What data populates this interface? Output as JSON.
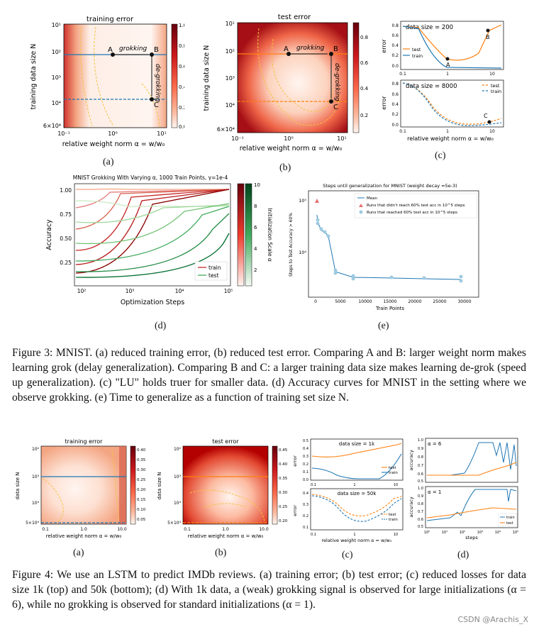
{
  "figure3": {
    "panel_a": {
      "title": "training error",
      "xlabel": "relative weight norm α = w/w₀",
      "ylabel": "training data size N",
      "xticks": [
        "10⁻¹",
        "10⁰",
        "10¹"
      ],
      "yticks": [
        "10¹",
        "10²",
        "10³",
        "10⁴",
        "6×10⁴"
      ],
      "colorbar_ticks": [
        "1.0",
        "0.8",
        "0.6",
        "0.4",
        "0.2",
        "0.0"
      ],
      "points": [
        "A",
        "B",
        "C"
      ],
      "arrow_labels": [
        "grokking",
        "de-grokking"
      ],
      "label": "(a)"
    },
    "panel_b": {
      "title": "test error",
      "xlabel": "relative weight norm α = w/w₀",
      "ylabel": "training data size N",
      "xticks": [
        "10⁻¹",
        "10⁰",
        "10¹"
      ],
      "yticks": [
        "10¹",
        "10²",
        "10³",
        "10⁴",
        "6×10⁴"
      ],
      "colorbar_ticks": [
        "0.8",
        "0.6",
        "0.4",
        "0.2"
      ],
      "points": [
        "A",
        "B",
        "C"
      ],
      "arrow_labels": [
        "grokking",
        "de-grokking"
      ],
      "label": "(b)"
    },
    "panel_c": {
      "top_title": "data size = 200",
      "bottom_title": "data size = 8000",
      "ylabel": "error",
      "xlabel": "relative weight norm α = w/w₀",
      "xticks": [
        "0.1",
        "1",
        "10"
      ],
      "top_yticks": [
        "0.8",
        "0.6",
        "0.4",
        "0.2",
        "0.0"
      ],
      "bottom_yticks": [
        "0.8",
        "0.6",
        "0.4",
        "0.2",
        "0.0"
      ],
      "legend": [
        "test",
        "train"
      ],
      "top_points": [
        "A",
        "B"
      ],
      "bottom_points": [
        "C"
      ],
      "label": "(c)"
    },
    "panel_d": {
      "title": "MNIST Grokking With Varying α, 1000 Train Points, γ=1e-4",
      "xlabel": "Optimization Steps",
      "ylabel": "Accuracy",
      "xticks": [
        "10²",
        "10³",
        "10⁴",
        "10⁵"
      ],
      "yticks": [
        "1.00",
        "0.75",
        "0.50",
        "0.25"
      ],
      "colorbar_label": "Initialization Scale α",
      "colorbar_ticks": [
        "10",
        "8",
        "6",
        "4",
        "2"
      ],
      "legend": [
        "train",
        "test"
      ],
      "label": "(d)"
    },
    "panel_e": {
      "title": "Steps until generalization for MNIST (weight decay ≈5e-3)",
      "xlabel": "Train Points",
      "ylabel": "Steps to Test Accuracy > 60%",
      "xticks": [
        "0",
        "5000",
        "10000",
        "15000",
        "20000",
        "25000",
        "30000"
      ],
      "yticks": [
        "10⁵",
        "10⁴"
      ],
      "legend": [
        "Mean",
        "Runs that didn't reach 60% test acc in 10^5 steps",
        "Runs that reached 60% test acc in 10^5 steps"
      ],
      "label": "(e)"
    },
    "caption": "Figure 3: MNIST. (a) reduced training error, (b) reduced test error. Comparing A and B: larger weight norm makes learning grok (delay generalization). Comparing B and C: a larger training data size makes learning de-grok (speed up generalization). (c) \"LU\" holds truer for smaller data. (d) Accuracy curves for MNIST in the setting where we observe grokking. (e) Time to generalize as a function of training set size N."
  },
  "figure4": {
    "panel_a": {
      "title": "training error",
      "xlabel": "relative weight norm α = w/w₀",
      "ylabel": "data size N",
      "xticks": [
        "0.1",
        "1.0",
        "10.0"
      ],
      "yticks": [
        "10²",
        "10³",
        "10⁴",
        "5×10⁴"
      ],
      "colorbar_ticks": [
        "0.40",
        "0.35",
        "0.30",
        "0.25",
        "0.20",
        "0.15",
        "0.10",
        "0.05"
      ],
      "label": "(a)"
    },
    "panel_b": {
      "title": "test error",
      "xlabel": "relative weight norm α = w/w₀",
      "ylabel": "data size N",
      "xticks": [
        "0.1",
        "1.0",
        "10.0"
      ],
      "yticks": [
        "10²",
        "10³",
        "10⁴",
        "5×10⁴"
      ],
      "colorbar_ticks": [
        "0.45",
        "0.40",
        "0.35",
        "0.30",
        "0.25",
        "0.20"
      ],
      "label": "(b)"
    },
    "panel_c": {
      "top_title": "data size = 1k",
      "bottom_title": "data size = 50k",
      "ylabel": "error",
      "xlabel": "relative weight norm α = w/w₀",
      "xticks": [
        "0.1",
        "1",
        "10"
      ],
      "top_yticks": [
        "0.5",
        "0.4",
        "0.3",
        "0.2",
        "0.1",
        "0.0"
      ],
      "bottom_yticks": [
        "0.4",
        "0.3",
        "0.2",
        "0.1"
      ],
      "legend": [
        "test",
        "train"
      ],
      "label": "(c)"
    },
    "panel_d": {
      "top_title": "α = 6",
      "bottom_title": "α = 1",
      "ylabel": "accuracy",
      "xlabel": "steps",
      "xticks": [
        "10⁰",
        "10¹",
        "10²",
        "10³",
        "10⁴",
        "10⁵"
      ],
      "top_yticks": [
        "1.0",
        "0.9",
        "0.8",
        "0.7",
        "0.6",
        "0.5"
      ],
      "bottom_yticks": [
        "1.0",
        "0.9",
        "0.8",
        "0.7",
        "0.6",
        "0.5"
      ],
      "legend": [
        "train",
        "test"
      ],
      "label": "(d)"
    },
    "caption": "Figure 4: We use an LSTM to predict IMDb reviews. (a) training error; (b) test error; (c) reduced losses for data size 1k (top) and 50k (bottom); (d) With 1k data, a (weak) grokking signal is observed for large initializations (α = 6), while no grokking is observed for standard initializations (α = 1)."
  },
  "watermark": "CSDN @Arachis_X",
  "colors": {
    "heat_dark": "#b2182b",
    "heat_light": "#fdeee6",
    "blue": "#1f77b4",
    "orange": "#ff7f0e",
    "green_dark": "#1b7837",
    "red_curve": "#d6604d",
    "contour": "#f5c242"
  }
}
